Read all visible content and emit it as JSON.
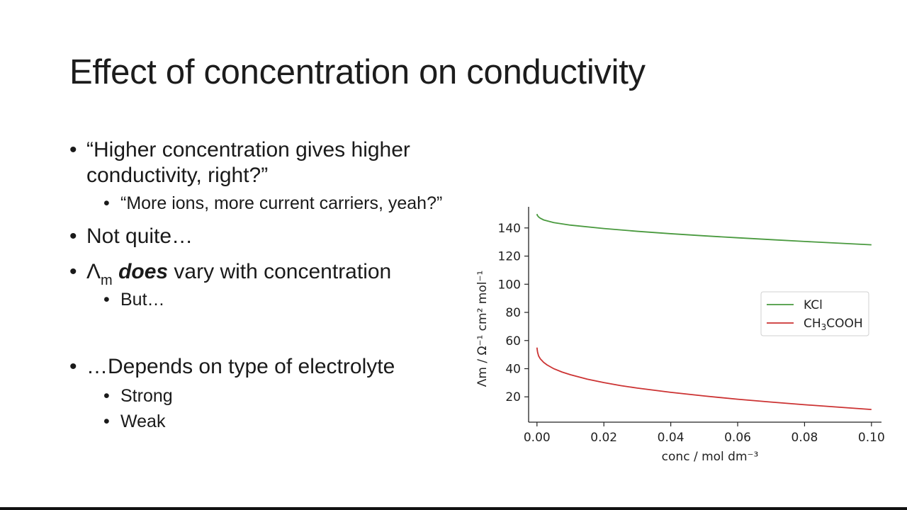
{
  "slide": {
    "title": "Effect of concentration on conductivity",
    "bullets": {
      "b1_line1": "“Higher concentration gives higher",
      "b1_line2": "conductivity, right?”",
      "b1_sub": "“More ions, more current carriers, yeah?”",
      "b2": "Not quite…",
      "b3_symbol": "Λ",
      "b3_subscript": "m",
      "b3_emph": "does",
      "b3_rest": " vary with concentration",
      "b3_sub": "But…",
      "b4": "…Depends on type of electrolyte",
      "b4_sub1": "Strong",
      "b4_sub2": "Weak"
    },
    "bullet_glyph": "•"
  },
  "chart_data": {
    "type": "line",
    "title": "",
    "xlabel": "conc / mol dm⁻³",
    "ylabel": "Λm / Ω⁻¹ cm² mol⁻¹",
    "xlim": [
      -0.0025,
      0.103
    ],
    "ylim": [
      2,
      155
    ],
    "xticks": [
      0.0,
      0.02,
      0.04,
      0.06,
      0.08,
      0.1
    ],
    "xtick_labels": [
      "0.00",
      "0.02",
      "0.04",
      "0.06",
      "0.08",
      "0.10"
    ],
    "yticks": [
      20,
      40,
      60,
      80,
      100,
      120,
      140
    ],
    "ytick_labels": [
      "20",
      "40",
      "60",
      "80",
      "100",
      "120",
      "140"
    ],
    "grid": false,
    "legend_position": "right",
    "series": [
      {
        "name": "KCl",
        "color": "#4a9a3f",
        "x": [
          0.0,
          0.0001,
          0.0005,
          0.001,
          0.002,
          0.005,
          0.01,
          0.02,
          0.03,
          0.04,
          0.05,
          0.06,
          0.07,
          0.08,
          0.09,
          0.1
        ],
        "y": [
          149.9,
          149.0,
          147.8,
          146.9,
          145.7,
          143.8,
          142.0,
          139.6,
          137.6,
          135.9,
          134.4,
          133.0,
          131.7,
          130.4,
          129.2,
          128.0
        ]
      },
      {
        "name_parts": [
          "CH",
          "3",
          "COOH"
        ],
        "color": "#cc3333",
        "x": [
          0.0,
          0.0001,
          0.0002,
          0.0005,
          0.001,
          0.002,
          0.003,
          0.005,
          0.0075,
          0.01,
          0.015,
          0.02,
          0.025,
          0.03,
          0.04,
          0.05,
          0.06,
          0.07,
          0.08,
          0.09,
          0.1
        ],
        "y": [
          55.0,
          53.0,
          51.5,
          49.0,
          47.0,
          44.5,
          42.7,
          40.0,
          37.6,
          35.7,
          32.6,
          30.1,
          28.0,
          26.2,
          23.2,
          20.6,
          18.3,
          16.3,
          14.4,
          12.7,
          11.0
        ]
      }
    ]
  }
}
